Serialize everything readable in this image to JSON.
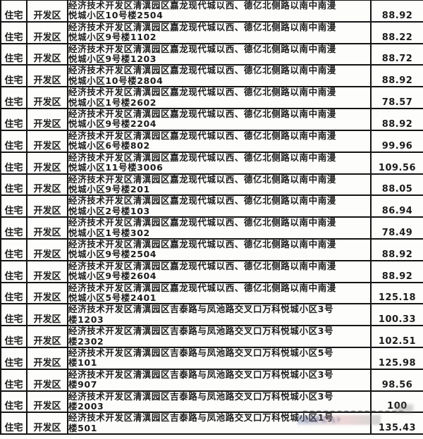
{
  "colors": {
    "background": "#fdfdfc",
    "border": "#141414",
    "text": "#1c1c1c",
    "watermark_blue": "#5a6f9e",
    "watermark_red": "#c06a6a"
  },
  "watermark": {
    "legible": false,
    "glyph_strip": "∷ĿⅣ⊥≒⊦"
  },
  "table": {
    "columns": [
      "type",
      "district",
      "address",
      "area"
    ],
    "rows": [
      {
        "type": "住宅",
        "district": "开发区",
        "address_line1": "经济技术开发区清潩园区嘉龙现代城以西、德亿北侧路以南中南漫",
        "address_line2": "悦城小区10号楼2504",
        "area": "88.92"
      },
      {
        "type": "住宅",
        "district": "开发区",
        "address_line1": "经济技术开发区清潩园区嘉龙现代城以西、德亿北侧路以南中南漫",
        "address_line2": "悦城小区9号楼1102",
        "area": "88.22"
      },
      {
        "type": "住宅",
        "district": "开发区",
        "address_line1": "经济技术开发区清潩园区嘉龙现代城以西、德亿北侧路以南中南漫",
        "address_line2": "悦城小区9号楼1203",
        "area": "88.72"
      },
      {
        "type": "住宅",
        "district": "开发区",
        "address_line1": "经济技术开发区清潩园区嘉龙现代城以西、德亿北侧路以南中南漫",
        "address_line2": "悦城小区10号楼2804",
        "area": "88.92"
      },
      {
        "type": "住宅",
        "district": "开发区",
        "address_line1": "经济技术开发区清潩园区嘉龙现代城以西、德亿北侧路以南中南漫",
        "address_line2": "悦城小区1号楼2602",
        "area": "78.57"
      },
      {
        "type": "住宅",
        "district": "开发区",
        "address_line1": "经济技术开发区清潩园区嘉龙现代城以西、德亿北侧路以南中南漫",
        "address_line2": "悦城小区9号楼2204",
        "area": "88.92"
      },
      {
        "type": "住宅",
        "district": "开发区",
        "address_line1": "经济技术开发区清潩园区嘉龙现代城以西、德亿北侧路以南中南漫",
        "address_line2": "悦城小区6号楼802",
        "area": "99.96"
      },
      {
        "type": "住宅",
        "district": "开发区",
        "address_line1": "经济技术开发区清潩园区嘉龙现代城以西、德亿北侧路以南中南漫",
        "address_line2": "悦城小区11号楼3006",
        "area": "109.56"
      },
      {
        "type": "住宅",
        "district": "开发区",
        "address_line1": "经济技术开发区清潩园区嘉龙现代城以西、德亿北侧路以南中南漫",
        "address_line2": "悦城小区9号楼201",
        "area": "88.05"
      },
      {
        "type": "住宅",
        "district": "开发区",
        "address_line1": "经济技术开发区清潩园区嘉龙现代城以西、德亿北侧路以南中南漫",
        "address_line2": "悦城小区2号楼103",
        "area": "86.94"
      },
      {
        "type": "住宅",
        "district": "开发区",
        "address_line1": "经济技术开发区清潩园区嘉龙现代城以西、德亿北侧路以南中南漫",
        "address_line2": "悦城小区1号楼302",
        "area": "78.49"
      },
      {
        "type": "住宅",
        "district": "开发区",
        "address_line1": "经济技术开发区清潩园区嘉龙现代城以西、德亿北侧路以南中南漫",
        "address_line2": "悦城小区9号楼2504",
        "area": "88.92"
      },
      {
        "type": "住宅",
        "district": "开发区",
        "address_line1": "经济技术开发区清潩园区嘉龙现代城以西、德亿北侧路以南中南漫",
        "address_line2": "悦城小区9号楼2604",
        "area": "88.92"
      },
      {
        "type": "住宅",
        "district": "开发区",
        "address_line1": "经济技术开发区清潩园区嘉龙现代城以西、德亿北侧路以南中南漫",
        "address_line2": "悦城小区5号楼2401",
        "area": "125.18"
      },
      {
        "type": "住宅",
        "district": "开发区",
        "address_line1": "经济技术开发区清潩园区吉泰路与凤池路交叉口万科悦城小区3号",
        "address_line2": "楼1203",
        "area": "100.33"
      },
      {
        "type": "住宅",
        "district": "开发区",
        "address_line1": "经济技术开发区清潩园区吉泰路与凤池路交叉口万科悦城小区3号",
        "address_line2": "楼2302",
        "area": "102.51"
      },
      {
        "type": "住宅",
        "district": "开发区",
        "address_line1": "经济技术开发区清潩园区吉泰路与凤池路交叉口万科悦城小区5号",
        "address_line2": "楼101",
        "area": "125.98"
      },
      {
        "type": "住宅",
        "district": "开发区",
        "address_line1": "经济技术开发区清潩园区吉泰路与凤池路交叉口万科悦城小区3号",
        "address_line2": "楼907",
        "area": "98.56"
      },
      {
        "type": "住宅",
        "district": "开发区",
        "address_line1": "经济技术开发区清潩园区吉泰路与凤池路交叉口万科悦城小区3号",
        "address_line2": "楼2003",
        "area": "100"
      },
      {
        "type": "住宅",
        "district": "开发区",
        "address_line1": "经济技术开发区清潩园区吉泰路与凤池路交叉口万科悦城小区1号",
        "address_line2": "楼501",
        "area": "135.43"
      }
    ]
  }
}
